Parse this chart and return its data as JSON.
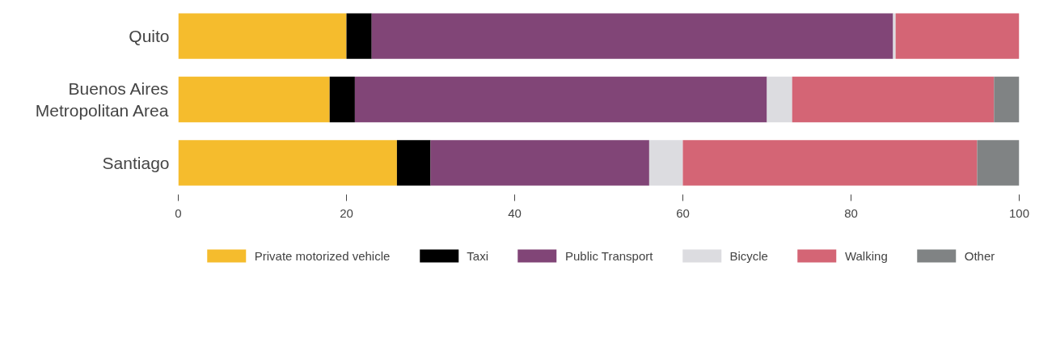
{
  "chart_data": {
    "type": "bar",
    "orientation": "horizontal",
    "stacked": true,
    "categories": [
      "Quito",
      "Buenos Aires Metropolitan Area",
      "Santiago"
    ],
    "series": [
      {
        "name": "Private motorized vehicle",
        "color": "#f5bc2d",
        "values": [
          20,
          18,
          26
        ]
      },
      {
        "name": "Taxi",
        "color": "#000000",
        "values": [
          3,
          3,
          4
        ]
      },
      {
        "name": "Public Transport",
        "color": "#814577",
        "values": [
          62,
          49,
          26
        ]
      },
      {
        "name": "Bicycle",
        "color": "#dcdce0",
        "values": [
          0.3,
          3,
          4
        ]
      },
      {
        "name": "Walking",
        "color": "#d46575",
        "values": [
          14.7,
          24,
          35
        ]
      },
      {
        "name": "Other",
        "color": "#808384",
        "values": [
          0,
          3,
          5
        ]
      }
    ],
    "xlim": [
      0,
      100
    ],
    "xticks": [
      0,
      20,
      40,
      60,
      80,
      100
    ],
    "grid": false,
    "legend": "bottom"
  }
}
